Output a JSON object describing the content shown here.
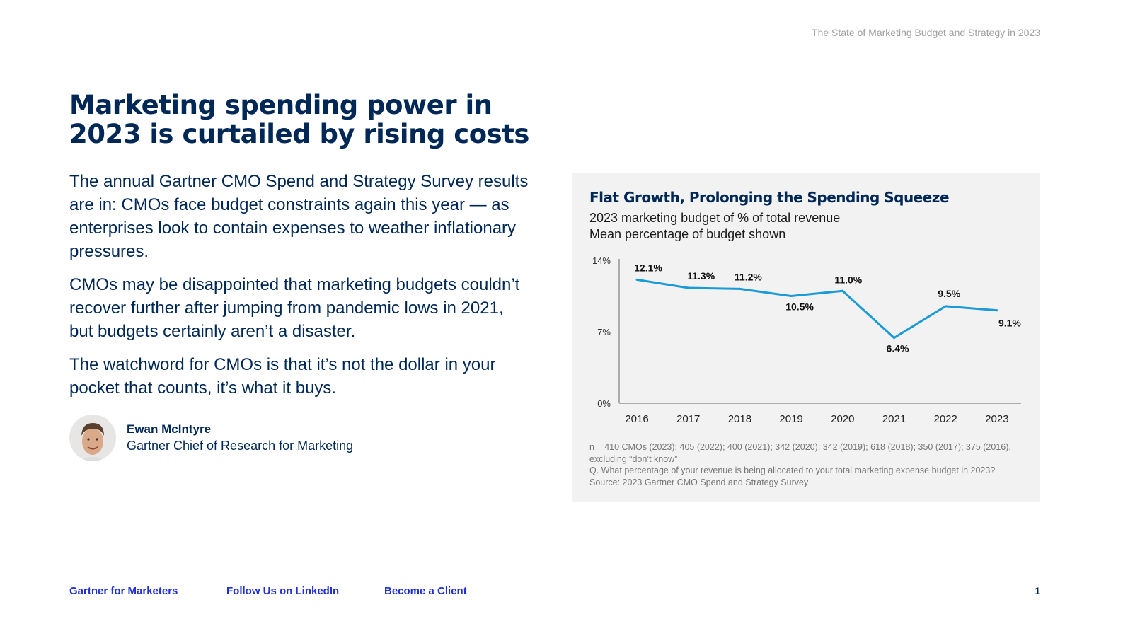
{
  "header": {
    "doc_title": "The State of Marketing Budget and Strategy in 2023"
  },
  "headline": "Marketing spending power in 2023 is curtailed by rising costs",
  "paragraphs": [
    "The annual Gartner CMO Spend and Strategy Survey results are in: CMOs face budget constraints again this year — as enterprises look to contain expenses to weather inflationary pressures.",
    "CMOs may be disappointed that marketing budgets couldn’t recover further after jumping from pandemic lows in 2021, but budgets certainly aren’t a disaster.",
    "The watchword for CMOs is that it’s not the dollar in your pocket that counts, it’s what it buys."
  ],
  "author": {
    "name": "Ewan McIntyre",
    "role": "Gartner Chief of Research for Marketing"
  },
  "chart_data": {
    "type": "line",
    "title": "Flat Growth, Prolonging the Spending Squeeze",
    "subtitle": [
      "2023 marketing budget of % of total revenue",
      "Mean percentage of budget shown"
    ],
    "categories": [
      "2016",
      "2017",
      "2018",
      "2019",
      "2020",
      "2021",
      "2022",
      "2023"
    ],
    "values": [
      12.1,
      11.3,
      11.2,
      10.5,
      11.0,
      6.4,
      9.5,
      9.1
    ],
    "data_labels": [
      "12.1%",
      "11.3%",
      "11.2%",
      "10.5%",
      "11.0%",
      "6.4%",
      "9.5%",
      "9.1%"
    ],
    "yticks": [
      "0%",
      "7%",
      "14%"
    ],
    "ylim": [
      0,
      14
    ],
    "line_color": "#1a9ad6",
    "grid": false
  },
  "footnotes": [
    "n = 410 CMOs (2023); 405 (2022); 400 (2021); 342 (2020); 342 (2019); 618 (2018); 350 (2017); 375 (2016), excluding “don’t know”",
    "Q. What percentage of your revenue is being allocated to your total marketing expense budget in 2023?",
    "Source: 2023 Gartner CMO Spend and Strategy Survey"
  ],
  "footer": {
    "links": [
      "Gartner for Marketers",
      "Follow Us on LinkedIn",
      "Become a Client"
    ],
    "page_number": "1"
  }
}
